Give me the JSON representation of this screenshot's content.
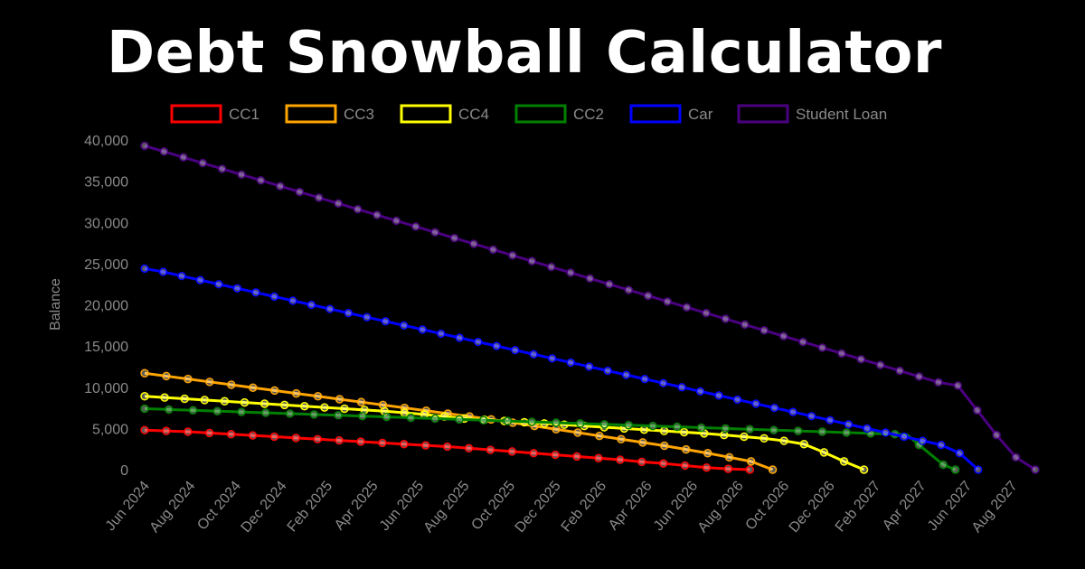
{
  "title": "Debt Snowball Calculator",
  "chart_data": {
    "type": "line",
    "title": "Debt Snowball Calculator",
    "xlabel": "",
    "ylabel": "Balance",
    "ylim": [
      0,
      40000
    ],
    "yticks": [
      0,
      5000,
      10000,
      15000,
      20000,
      25000,
      30000,
      35000,
      40000
    ],
    "ytick_labels": [
      "0",
      "5,000",
      "10,000",
      "15,000",
      "20,000",
      "25,000",
      "30,000",
      "35,000",
      "40,000"
    ],
    "x_labels": [
      "Jun 2024",
      "Jul 2024",
      "Aug 2024",
      "Sep 2024",
      "Oct 2024",
      "Nov 2024",
      "Dec 2024",
      "Jan 2025",
      "Feb 2025",
      "Mar 2025",
      "Apr 2025",
      "May 2025",
      "Jun 2025",
      "Jul 2025",
      "Aug 2025",
      "Sep 2025",
      "Oct 2025",
      "Nov 2025",
      "Dec 2025",
      "Jan 2026",
      "Feb 2026",
      "Mar 2026",
      "Apr 2026",
      "May 2026",
      "Jun 2026",
      "Jul 2026",
      "Aug 2026",
      "Sep 2026",
      "Oct 2026",
      "Nov 2026",
      "Dec 2026",
      "Jan 2027",
      "Feb 2027",
      "Mar 2027",
      "Apr 2027",
      "May 2027",
      "Jun 2027",
      "Jul 2027",
      "Aug 2027",
      "Sep 2027"
    ],
    "x_tick_labels_shown": [
      "Jun 2024",
      "Aug 2024",
      "Oct 2024",
      "Dec 2024",
      "Feb 2025",
      "Apr 2025",
      "Jun 2025",
      "Aug 2025",
      "Oct 2025",
      "Dec 2025",
      "Feb 2026",
      "Apr 2026",
      "Jun 2026",
      "Aug 2026",
      "Oct 2026",
      "Dec 2026",
      "Feb 2027",
      "Apr 2027",
      "Jun 2027",
      "Aug 2027"
    ],
    "grid": false,
    "legend_position": "top",
    "series": [
      {
        "name": "CC1",
        "color": "#ff0000",
        "values": [
          4800,
          4700,
          4600,
          4450,
          4300,
          4150,
          4000,
          3850,
          3700,
          3550,
          3400,
          3250,
          3100,
          2950,
          2800,
          2600,
          2400,
          2200,
          2000,
          1800,
          1600,
          1400,
          1200,
          950,
          750,
          500,
          250,
          100,
          0
        ]
      },
      {
        "name": "CC3",
        "color": "#ffa500",
        "values": [
          11700,
          11350,
          11000,
          10650,
          10300,
          9950,
          9600,
          9250,
          8900,
          8550,
          8200,
          7850,
          7500,
          7150,
          6800,
          6450,
          6100,
          5700,
          5300,
          4900,
          4500,
          4100,
          3700,
          3300,
          2900,
          2450,
          2000,
          1500,
          1000,
          0
        ]
      },
      {
        "name": "CC4",
        "color": "#ffff00",
        "values": [
          8900,
          8750,
          8600,
          8450,
          8300,
          8150,
          8000,
          7850,
          7700,
          7550,
          7400,
          7250,
          7100,
          6900,
          6700,
          6450,
          6200,
          6050,
          5900,
          5750,
          5600,
          5450,
          5300,
          5150,
          5000,
          4850,
          4700,
          4550,
          4400,
          4200,
          4000,
          3800,
          3500,
          3100,
          2100,
          1000,
          0
        ]
      },
      {
        "name": "CC2",
        "color": "#008000",
        "values": [
          7400,
          7350,
          7300,
          7250,
          7200,
          7150,
          7100,
          7050,
          7000,
          6950,
          6900,
          6850,
          6800,
          6750,
          6700,
          6650,
          6600,
          6550,
          6500,
          6450,
          6400,
          6350,
          6300,
          6250,
          6200,
          6150,
          6100,
          6050,
          6000,
          5950,
          5900,
          5850,
          5800,
          5750,
          5700,
          5650,
          5600,
          5550,
          5500,
          5450,
          5400,
          5350,
          5300,
          5250,
          5200,
          5150,
          5100,
          5050,
          5000,
          4950,
          4900,
          4850,
          4800,
          4750,
          4700,
          4650,
          4600,
          4550,
          4500,
          4450,
          4400,
          4350,
          4300,
          4250,
          3000,
          1800,
          600,
          0
        ]
      },
      {
        "name": "Car",
        "color": "#0000ff",
        "values": [
          24400,
          24000,
          23500,
          23000,
          22500,
          22000,
          21500,
          21000,
          20500,
          20000,
          19500,
          19000,
          18500,
          18000,
          17500,
          17000,
          16500,
          16000,
          15500,
          15000,
          14500,
          14000,
          13500,
          13000,
          12500,
          12000,
          11500,
          11000,
          10500,
          10000,
          9500,
          9000,
          8500,
          8000,
          7500,
          7000,
          6500,
          6000,
          5500,
          5000,
          4500,
          4000,
          3500,
          3000,
          2000,
          0
        ]
      },
      {
        "name": "Student Loan",
        "color": "#4b0082",
        "values": [
          39300,
          38600,
          37900,
          37200,
          36500,
          35800,
          35100,
          34400,
          33700,
          33000,
          32300,
          31600,
          30900,
          30200,
          29500,
          28800,
          28100,
          27400,
          26700,
          26000,
          25300,
          24600,
          23900,
          23200,
          22500,
          21800,
          21100,
          20400,
          19700,
          19000,
          18300,
          17600,
          16900,
          16200,
          15500,
          14800,
          14100,
          13400,
          12700,
          12000,
          11300,
          10600,
          10200,
          7200,
          4200,
          1500,
          0
        ]
      }
    ]
  }
}
